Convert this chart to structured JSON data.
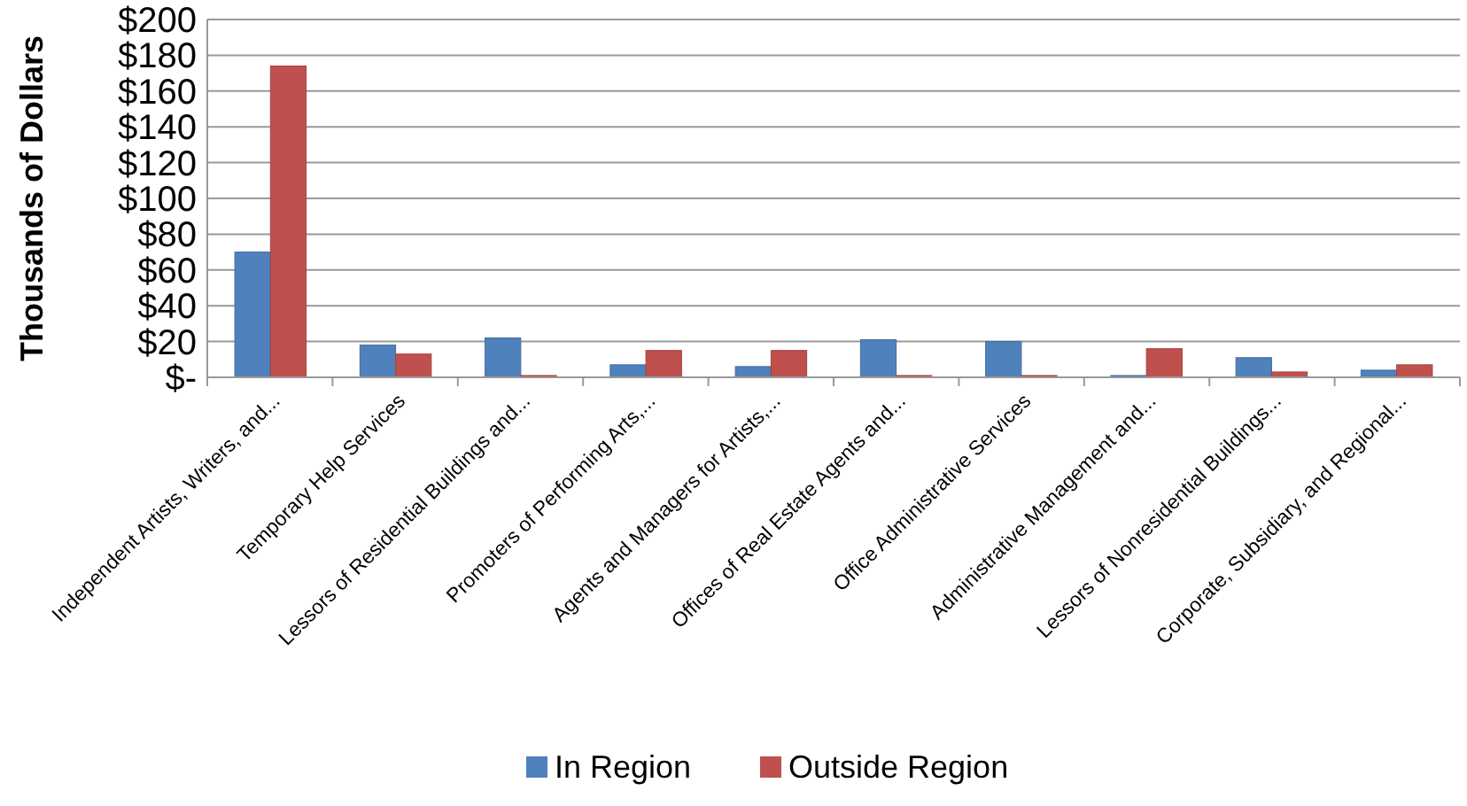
{
  "chart_data": {
    "type": "bar",
    "ylabel": "Thousands of Dollars",
    "categories": [
      "Independent Artists, Writers, and...",
      "Temporary Help Services",
      "Lessors of Residential Buildings and...",
      "Promoters of Performing Arts,...",
      "Agents and Managers for Artists,...",
      "Offices of Real Estate Agents and...",
      "Office Administrative Services",
      "Administrative Management and...",
      "Lessors of Nonresidential Buildings...",
      "Corporate, Subsidiary, and Regional..."
    ],
    "series": [
      {
        "name": "In Region",
        "color": "#4f81bd",
        "values": [
          70,
          18,
          22,
          7,
          6,
          21,
          20,
          1,
          11,
          4
        ]
      },
      {
        "name": "Outside Region",
        "color": "#c0504d",
        "values": [
          174,
          13,
          1,
          15,
          15,
          1,
          1,
          16,
          3,
          7
        ]
      }
    ],
    "ylim": [
      0,
      200
    ],
    "yticks": [
      {
        "value": 0,
        "label": "$-"
      },
      {
        "value": 20,
        "label": "$20"
      },
      {
        "value": 40,
        "label": "$40"
      },
      {
        "value": 60,
        "label": "$60"
      },
      {
        "value": 80,
        "label": "$80"
      },
      {
        "value": 100,
        "label": "$100"
      },
      {
        "value": 120,
        "label": "$120"
      },
      {
        "value": 140,
        "label": "$140"
      },
      {
        "value": 160,
        "label": "$160"
      },
      {
        "value": 180,
        "label": "$180"
      },
      {
        "value": 200,
        "label": "$200"
      }
    ],
    "grid": "y",
    "legend": "bottom"
  }
}
